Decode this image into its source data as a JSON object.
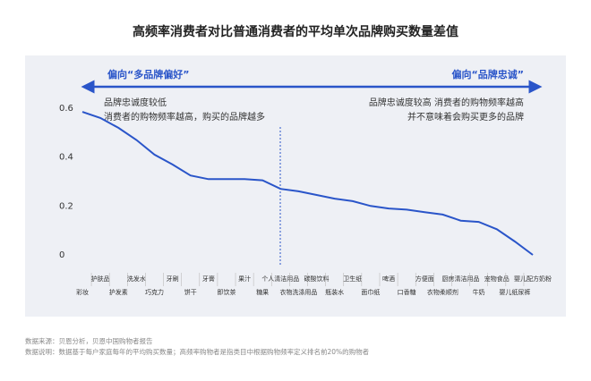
{
  "chart_data": {
    "type": "line",
    "title": "高频率消费者对比普通消费者的平均单次品牌购买数量差值",
    "annotations": {
      "left_bias": "偏向“多品牌偏好”",
      "right_bias": "偏向“品牌忠诚”",
      "left_note": [
        "品牌忠诚度较低",
        "消费者的购物频率越高，购买的品牌越多"
      ],
      "right_note": [
        "品牌忠诚度较高 消费者的购物频率越高",
        "并不意味着会购买更多的品牌"
      ]
    },
    "categories": [
      "彩妆",
      "护肤品",
      "护发素",
      "洗发水",
      "巧克力",
      "牙刷",
      "饼干",
      "牙膏",
      "即饮茶",
      "果汁",
      "糖果",
      "个人清洁用品",
      "衣物洗涤用品",
      "碳酸饮料",
      "瓶装水",
      "卫生纸",
      "面巾纸",
      "啤酒",
      "口香糖",
      "方便面",
      "衣物柔顺剂",
      "厨房清洁用品",
      "牛奶",
      "宠物食品",
      "婴儿纸尿裤",
      "婴儿配方奶粉"
    ],
    "values": [
      0.585,
      0.56,
      0.52,
      0.47,
      0.41,
      0.37,
      0.325,
      0.31,
      0.31,
      0.31,
      0.305,
      0.27,
      0.26,
      0.245,
      0.23,
      0.22,
      0.2,
      0.19,
      0.185,
      0.175,
      0.165,
      0.14,
      0.135,
      0.105,
      0.055,
      0
    ],
    "color": "#2a55c9",
    "ylim": [
      0,
      0.6
    ],
    "yticks": [
      0,
      0.2,
      0.4,
      0.6
    ],
    "grid": false,
    "notes": [
      "数据来源：贝恩分析，贝恩中国购物者报告",
      "数据说明：数据基于每户家庭每年的平均购买数量；高频率购物者是指类目中根据购物频率定义排名前20%的购物者"
    ]
  }
}
